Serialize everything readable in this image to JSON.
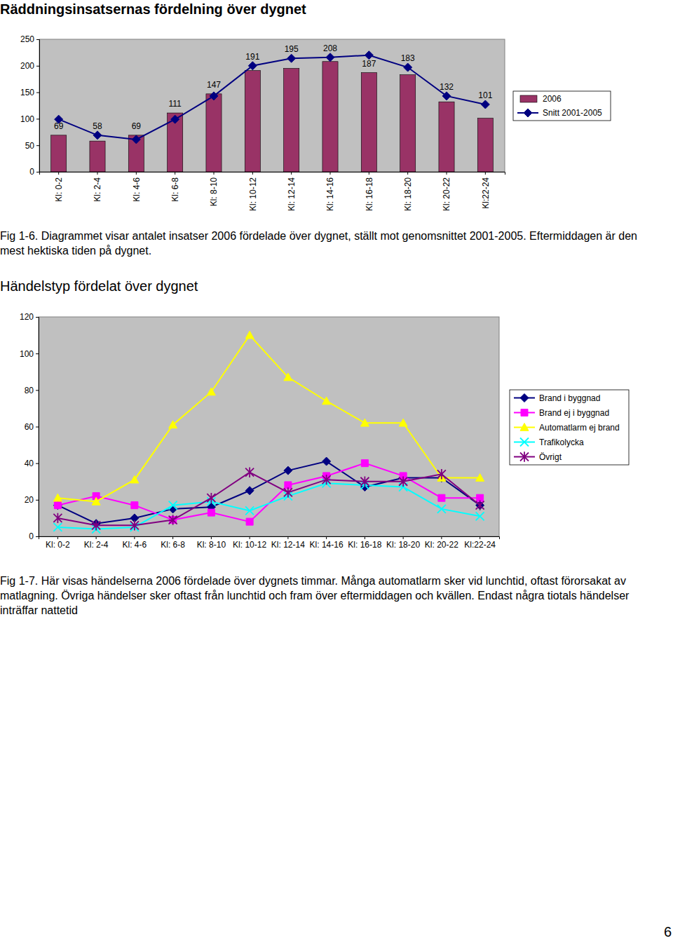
{
  "chart_data": [
    {
      "type": "bar",
      "title": "Räddningsinsatsernas fördelning över dygnet",
      "categories": [
        "Kl: 0-2",
        "Kl: 2-4",
        "Kl: 4-6",
        "Kl: 6-8",
        "Kl: 8-10",
        "Kl: 10-12",
        "Kl: 12-14",
        "Kl: 14-16",
        "Kl: 16-18",
        "Kl: 18-20",
        "Kl: 20-22",
        "Kl:22-24"
      ],
      "series": [
        {
          "name": "2006",
          "type": "bar",
          "color": "#993366",
          "data_labels": true,
          "values": [
            69,
            58,
            69,
            111,
            147,
            191,
            195,
            208,
            187,
            183,
            132,
            101
          ]
        },
        {
          "name": "Snitt 2001-2005",
          "type": "line",
          "color": "#000080",
          "marker": "diamond",
          "values": [
            99,
            69,
            61,
            99,
            143,
            200,
            214,
            216,
            220,
            197,
            143,
            127
          ]
        }
      ],
      "ylim": [
        0,
        250
      ],
      "yticks": [
        0,
        50,
        100,
        150,
        200,
        250
      ],
      "grid": false,
      "legend": "right"
    },
    {
      "type": "line",
      "title": "Händelstyp fördelat över dygnet",
      "categories": [
        "Kl: 0-2",
        "Kl: 2-4",
        "Kl: 4-6",
        "Kl: 6-8",
        "Kl: 8-10",
        "Kl: 10-12",
        "Kl: 12-14",
        "Kl: 14-16",
        "Kl: 16-18",
        "Kl: 18-20",
        "Kl: 20-22",
        "Kl:22-24"
      ],
      "series": [
        {
          "name": "Brand i byggnad",
          "color": "#000080",
          "marker": "diamond",
          "values": [
            17,
            7,
            10,
            15,
            16,
            25,
            36,
            41,
            27,
            32,
            32,
            17
          ]
        },
        {
          "name": "Brand ej i byggnad",
          "color": "#ff00ff",
          "marker": "square",
          "values": [
            17,
            22,
            17,
            9,
            13,
            8,
            28,
            33,
            40,
            33,
            21,
            21
          ]
        },
        {
          "name": "Automatlarm ej brand",
          "color": "#ffff00",
          "marker": "triangle",
          "values": [
            21,
            19,
            31,
            61,
            79,
            110,
            87,
            74,
            62,
            62,
            32,
            32
          ]
        },
        {
          "name": "Trafikolycka",
          "color": "#00ffff",
          "marker": "x",
          "values": [
            5,
            4,
            5,
            17,
            19,
            14,
            22,
            29,
            28,
            27,
            15,
            11
          ]
        },
        {
          "name": "Övrigt",
          "color": "#800080",
          "marker": "asterisk",
          "values": [
            10,
            6,
            6,
            9,
            21,
            35,
            24,
            31,
            30,
            30,
            34,
            17
          ]
        }
      ],
      "ylim": [
        0,
        120
      ],
      "yticks": [
        0,
        20,
        40,
        60,
        80,
        100,
        120
      ],
      "grid": false,
      "legend": "right"
    }
  ],
  "document": {
    "captions": [
      "Fig 1-6. Diagrammet visar antalet insatser 2006 fördelade över dygnet, ställt mot genomsnittet 2001-2005. Eftermiddagen är den mest hektiska tiden på dygnet.",
      "Fig 1-7. Här visas händelserna 2006 fördelade över dygnets timmar. Många automatlarm sker vid lunchtid, oftast förorsakat av matlagning. Övriga händelser sker oftast från lunchtid och fram över eftermiddagen och kvällen. Endast några tiotals händelser inträffar nattetid"
    ],
    "page_number": "6"
  }
}
